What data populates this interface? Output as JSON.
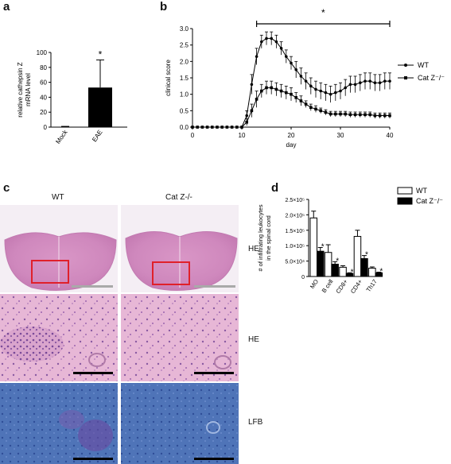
{
  "panels": {
    "a": {
      "letter": "a"
    },
    "b": {
      "letter": "b"
    },
    "c": {
      "letter": "c"
    },
    "d": {
      "letter": "d"
    }
  },
  "chart_data": [
    {
      "id": "a",
      "type": "bar",
      "ylabel_line1": "relative cathepsin Z",
      "ylabel_line2": "mRNA level",
      "categories": [
        "Mock",
        "EAE"
      ],
      "values": [
        0.5,
        53
      ],
      "errors": [
        0.5,
        37
      ],
      "yticks": [
        0,
        20,
        40,
        60,
        80,
        100
      ],
      "ylim": [
        0,
        100
      ],
      "annotation": "*",
      "colors": {
        "bar": "#000000"
      }
    },
    {
      "id": "b",
      "type": "line",
      "xlabel": "day",
      "ylabel": "clinical score",
      "xticks": [
        0,
        10,
        20,
        30,
        40
      ],
      "yticks": [
        "0.0",
        "0.5",
        "1.0",
        "1.5",
        "2.0",
        "2.5",
        "3.0"
      ],
      "xlim": [
        0,
        40
      ],
      "ylim": [
        0,
        3.0
      ],
      "annotation": "*",
      "significance_bar": [
        13,
        40
      ],
      "series": [
        {
          "name": "WT",
          "marker": "circle",
          "x": [
            0,
            1,
            2,
            3,
            4,
            5,
            6,
            7,
            8,
            9,
            10,
            11,
            12,
            13,
            14,
            15,
            16,
            17,
            18,
            19,
            20,
            21,
            22,
            23,
            24,
            25,
            26,
            27,
            28,
            29,
            30,
            31,
            32,
            33,
            34,
            35,
            36,
            37,
            38,
            39,
            40
          ],
          "y": [
            0,
            0,
            0,
            0,
            0,
            0,
            0,
            0,
            0,
            0,
            0,
            0.35,
            1.3,
            2.15,
            2.6,
            2.7,
            2.7,
            2.6,
            2.4,
            2.15,
            1.95,
            1.75,
            1.55,
            1.4,
            1.25,
            1.15,
            1.1,
            1.05,
            1.0,
            1.05,
            1.1,
            1.2,
            1.3,
            1.3,
            1.35,
            1.4,
            1.4,
            1.35,
            1.35,
            1.4,
            1.4
          ],
          "err": [
            0,
            0,
            0,
            0,
            0,
            0,
            0,
            0,
            0,
            0,
            0,
            0.15,
            0.3,
            0.25,
            0.2,
            0.2,
            0.2,
            0.2,
            0.2,
            0.2,
            0.2,
            0.25,
            0.25,
            0.25,
            0.25,
            0.25,
            0.25,
            0.25,
            0.25,
            0.25,
            0.25,
            0.25,
            0.25,
            0.25,
            0.25,
            0.25,
            0.25,
            0.25,
            0.25,
            0.25,
            0.25
          ]
        },
        {
          "name": "Cat Z⁻/⁻",
          "marker": "square",
          "x": [
            0,
            1,
            2,
            3,
            4,
            5,
            6,
            7,
            8,
            9,
            10,
            11,
            12,
            13,
            14,
            15,
            16,
            17,
            18,
            19,
            20,
            21,
            22,
            23,
            24,
            25,
            26,
            27,
            28,
            29,
            30,
            31,
            32,
            33,
            34,
            35,
            36,
            37,
            38,
            39,
            40
          ],
          "y": [
            0,
            0,
            0,
            0,
            0,
            0,
            0,
            0,
            0,
            0,
            0,
            0.15,
            0.5,
            0.85,
            1.1,
            1.2,
            1.2,
            1.15,
            1.1,
            1.05,
            1.0,
            0.9,
            0.8,
            0.7,
            0.6,
            0.55,
            0.5,
            0.45,
            0.4,
            0.4,
            0.4,
            0.4,
            0.38,
            0.38,
            0.38,
            0.38,
            0.38,
            0.35,
            0.35,
            0.35,
            0.35
          ],
          "err": [
            0,
            0,
            0,
            0,
            0,
            0,
            0,
            0,
            0,
            0,
            0,
            0.1,
            0.2,
            0.25,
            0.2,
            0.2,
            0.2,
            0.2,
            0.2,
            0.2,
            0.2,
            0.15,
            0.15,
            0.1,
            0.1,
            0.1,
            0.08,
            0.08,
            0.08,
            0.08,
            0.08,
            0.08,
            0.08,
            0.08,
            0.08,
            0.08,
            0.08,
            0.08,
            0.08,
            0.08,
            0.08
          ]
        }
      ]
    },
    {
      "id": "d",
      "type": "bar",
      "ylabel_line1": "# of infiltrating leukocytes",
      "ylabel_line2": "in the spinal cord",
      "categories": [
        "MO",
        "B cell",
        "CD8+",
        "CD4+",
        "Th17"
      ],
      "yticks": [
        "0",
        "5.0×10⁴",
        "1.0×10⁵",
        "1.5×10⁵",
        "2.0×10⁵",
        "2.5×10⁵"
      ],
      "ylim": [
        0,
        250000
      ],
      "series": [
        {
          "name": "WT",
          "fill": "#ffffff",
          "values": [
            190000,
            78000,
            30000,
            130000,
            27000
          ],
          "errors": [
            22000,
            25000,
            5000,
            20000,
            4000
          ]
        },
        {
          "name": "Cat Z⁻/⁻",
          "fill": "#000000",
          "values": [
            82000,
            40000,
            10000,
            58000,
            12000
          ],
          "errors": [
            12000,
            8000,
            2000,
            10000,
            2000
          ]
        }
      ],
      "annotations": [
        "*",
        "*",
        "*",
        "*",
        "*"
      ]
    }
  ],
  "histology": {
    "col_labels": [
      "WT",
      "Cat Z-/-"
    ],
    "row_labels": [
      "HE",
      "HE",
      "LFB"
    ]
  }
}
